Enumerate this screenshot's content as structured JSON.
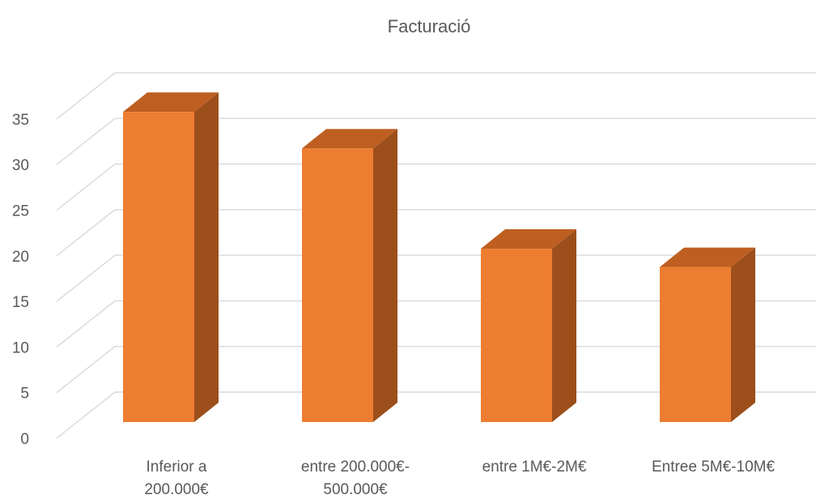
{
  "chart_data": {
    "type": "bar",
    "title": "Facturació",
    "xlabel": "",
    "ylabel": "",
    "categories": [
      [
        "Inferior a",
        "200.000€"
      ],
      [
        "entre 200.000€-",
        "500.000€"
      ],
      [
        "entre 1M€-2M€"
      ],
      [
        "Entree 5M€-10M€"
      ]
    ],
    "values": [
      34,
      30,
      19,
      17
    ],
    "ylim": [
      0,
      35
    ],
    "yticks": [
      0,
      5,
      10,
      15,
      20,
      25,
      30,
      35
    ],
    "grid": true,
    "legend": "none",
    "three_d": true,
    "colors": {
      "front": "#ED7D31",
      "side": "#9C4F1B",
      "top": "#BE5F21",
      "grid": "#D9D9D9",
      "text": "#595959"
    }
  }
}
